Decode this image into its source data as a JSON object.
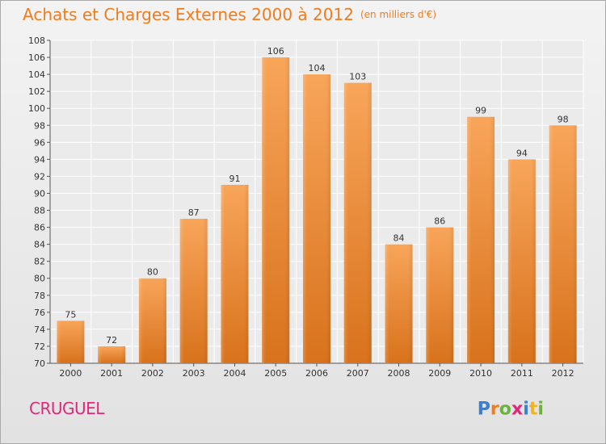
{
  "title": "Achats et Charges Externes 2000 à 2012",
  "subtitle": "(en milliers d'€)",
  "commune": "CRUGUEL",
  "logo_text": "Proxiti",
  "colors": {
    "title": "#f07c1e",
    "bar_top": "#f8a55a",
    "bar_bottom": "#d8721c",
    "commune": "#e0287a"
  },
  "chart_data": {
    "type": "bar",
    "title": "Achats et Charges Externes 2000 à 2012",
    "subtitle": "(en milliers d'€)",
    "categories": [
      "2000",
      "2001",
      "2002",
      "2003",
      "2004",
      "2005",
      "2006",
      "2007",
      "2008",
      "2009",
      "2010",
      "2011",
      "2012"
    ],
    "values": [
      75,
      72,
      80,
      87,
      91,
      106,
      104,
      103,
      84,
      86,
      99,
      94,
      98
    ],
    "ylim": [
      70,
      108
    ],
    "ytick_step": 2,
    "grid": true,
    "data_labels": true
  }
}
